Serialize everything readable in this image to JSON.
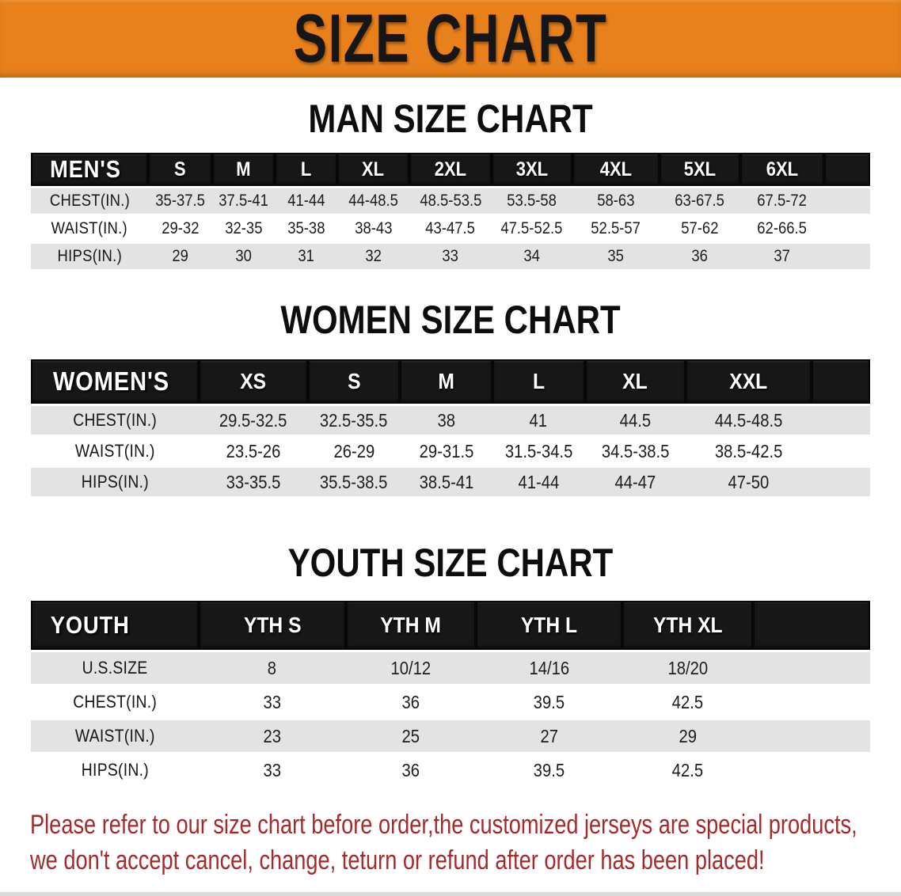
{
  "banner": {
    "title": "SIZE CHART"
  },
  "sections": [
    {
      "title": "MAN SIZE CHART",
      "table": {
        "header": [
          "MEN'S",
          "S",
          "M",
          "L",
          "XL",
          "2XL",
          "3XL",
          "4XL",
          "5XL",
          "6XL"
        ],
        "rows": [
          {
            "label": "CHEST(IN.)",
            "values": [
              "35-37.5",
              "37.5-41",
              "41-44",
              "44-48.5",
              "48.5-53.5",
              "53.5-58",
              "58-63",
              "63-67.5",
              "67.5-72"
            ]
          },
          {
            "label": "WAIST(IN.)",
            "values": [
              "29-32",
              "32-35",
              "35-38",
              "38-43",
              "43-47.5",
              "47.5-52.5",
              "52.5-57",
              "57-62",
              "62-66.5"
            ]
          },
          {
            "label": "HIPS(IN.)",
            "values": [
              "29",
              "30",
              "31",
              "32",
              "33",
              "34",
              "35",
              "36",
              "37"
            ]
          }
        ]
      }
    },
    {
      "title": "WOMEN SIZE CHART",
      "table": {
        "header": [
          "WOMEN'S",
          "XS",
          "S",
          "M",
          "L",
          "XL",
          "XXL"
        ],
        "rows": [
          {
            "label": "CHEST(IN.)",
            "values": [
              "29.5-32.5",
              "32.5-35.5",
              "38",
              "41",
              "44.5",
              "44.5-48.5"
            ]
          },
          {
            "label": "WAIST(IN.)",
            "values": [
              "23.5-26",
              "26-29",
              "29-31.5",
              "31.5-34.5",
              "34.5-38.5",
              "38.5-42.5"
            ]
          },
          {
            "label": "HIPS(IN.)",
            "values": [
              "33-35.5",
              "35.5-38.5",
              "38.5-41",
              "41-44",
              "44-47",
              "47-50"
            ]
          }
        ]
      }
    },
    {
      "title": "YOUTH SIZE CHART",
      "table": {
        "header": [
          "YOUTH",
          "YTH S",
          "YTH M",
          "YTH L",
          "YTH XL"
        ],
        "rows": [
          {
            "label": "U.S.SIZE",
            "values": [
              "8",
              "10/12",
              "14/16",
              "18/20"
            ]
          },
          {
            "label": "CHEST(IN.)",
            "values": [
              "33",
              "36",
              "39.5",
              "42.5"
            ]
          },
          {
            "label": "WAIST(IN.)",
            "values": [
              "23",
              "25",
              "27",
              "29"
            ]
          },
          {
            "label": "HIPS(IN.)",
            "values": [
              "33",
              "36",
              "39.5",
              "42.5"
            ]
          }
        ]
      }
    }
  ],
  "disclaimer": {
    "lines": [
      "Please refer to our size chart before order,the customized jerseys are special products,",
      "we don't accept cancel, change, teturn or refund after order has been placed!"
    ]
  },
  "colors": {
    "banner_bg": "#E8811C",
    "header_row_bg": "#171717",
    "stripe_row_bg": "#E3E3E3",
    "disclaimer_text": "#A52A2A"
  }
}
